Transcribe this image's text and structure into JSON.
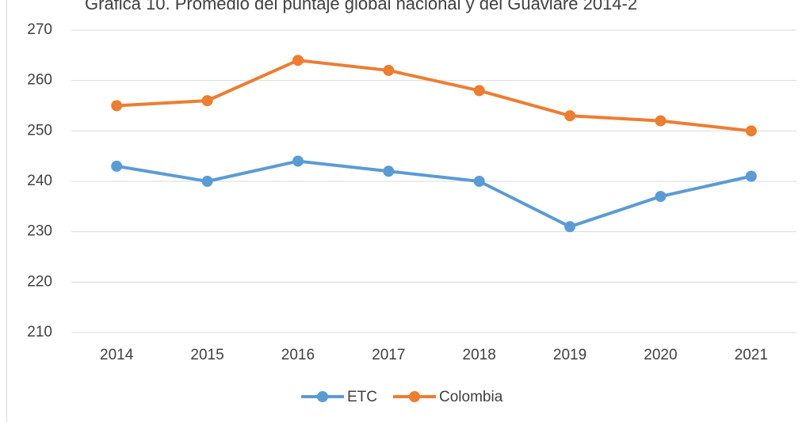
{
  "chart_data": {
    "type": "line",
    "title": "Gráfica 10. Promedio del puntaje global nacional y del Guaviare 2014-2",
    "categories": [
      "2014",
      "2015",
      "2016",
      "2017",
      "2018",
      "2019",
      "2020",
      "2021"
    ],
    "series": [
      {
        "name": "ETC",
        "color": "#5b9bd5",
        "values": [
          243,
          240,
          244,
          242,
          240,
          231,
          237,
          241
        ]
      },
      {
        "name": "Colombia",
        "color": "#ed7d31",
        "values": [
          255,
          256,
          264,
          262,
          258,
          253,
          252,
          250
        ]
      }
    ],
    "ylim": [
      210,
      270
    ],
    "yticks": [
      210,
      220,
      230,
      240,
      250,
      260,
      270
    ],
    "grid": true,
    "legend": "bottom"
  }
}
